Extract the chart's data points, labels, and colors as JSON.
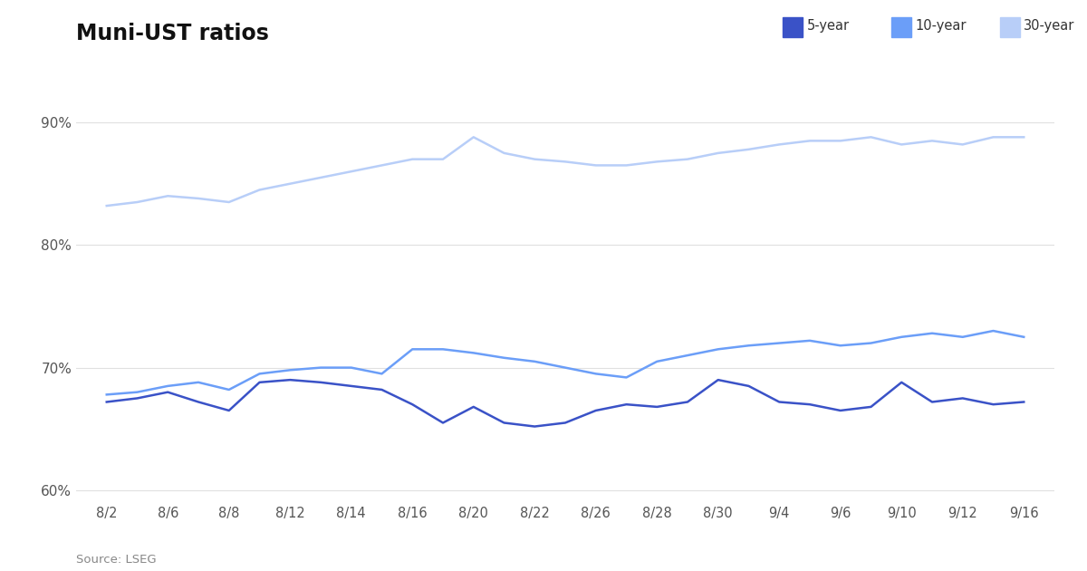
{
  "title": "Muni-UST ratios",
  "source": "Source: LSEG",
  "x_labels": [
    "8/2",
    "8/6",
    "8/8",
    "8/12",
    "8/14",
    "8/16",
    "8/20",
    "8/22",
    "8/26",
    "8/28",
    "8/30",
    "9/4",
    "9/6",
    "9/10",
    "9/12",
    "9/16"
  ],
  "series": {
    "5year": {
      "label": "5-year",
      "color": "#3a52c7",
      "values": [
        67.2,
        67.5,
        68.0,
        67.2,
        66.5,
        68.8,
        69.0,
        68.8,
        68.5,
        68.2,
        67.0,
        65.5,
        66.8,
        65.5,
        65.2,
        65.5,
        66.5,
        67.0,
        66.8,
        67.2,
        69.0,
        68.5,
        67.2,
        67.0,
        66.5,
        66.8,
        68.8,
        67.2,
        67.5,
        67.0,
        67.2
      ]
    },
    "10year": {
      "label": "10-year",
      "color": "#6b9ef8",
      "values": [
        67.8,
        68.0,
        68.5,
        68.8,
        68.2,
        69.5,
        69.8,
        70.0,
        70.0,
        69.5,
        71.5,
        71.5,
        71.2,
        70.8,
        70.5,
        70.0,
        69.5,
        69.2,
        70.5,
        71.0,
        71.5,
        71.8,
        72.0,
        72.2,
        71.8,
        72.0,
        72.5,
        72.8,
        72.5,
        73.0,
        72.5
      ]
    },
    "30year": {
      "label": "30-year",
      "color": "#b8cef8",
      "values": [
        83.2,
        83.5,
        84.0,
        83.8,
        83.5,
        84.5,
        85.0,
        85.5,
        86.0,
        86.5,
        87.0,
        87.0,
        88.8,
        87.5,
        87.0,
        86.8,
        86.5,
        86.5,
        86.8,
        87.0,
        87.5,
        87.8,
        88.2,
        88.5,
        88.5,
        88.8,
        88.2,
        88.5,
        88.2,
        88.8,
        88.8
      ]
    }
  },
  "ylim": [
    59,
    93
  ],
  "yticks": [
    60,
    70,
    80,
    90
  ],
  "background_color": "#ffffff",
  "grid_color": "#e0e0e0"
}
